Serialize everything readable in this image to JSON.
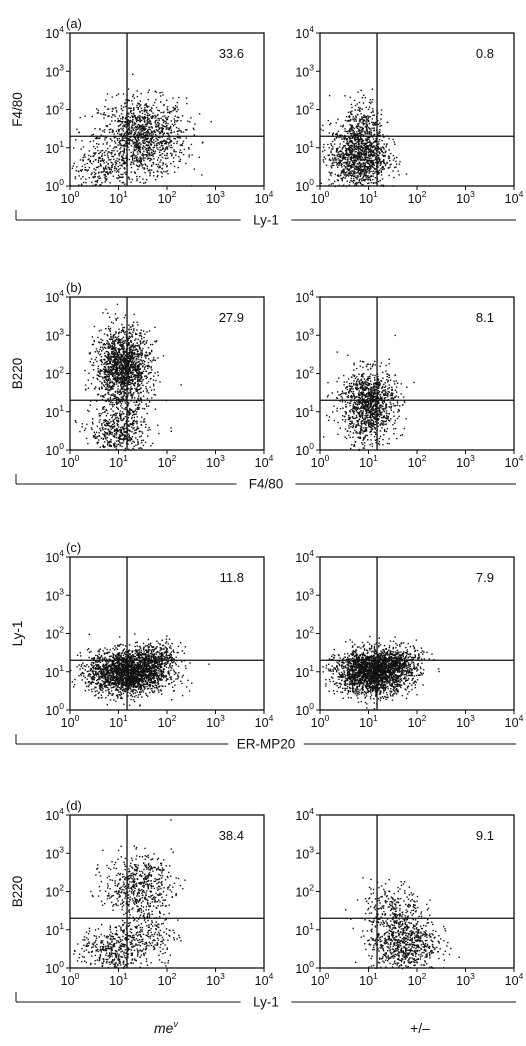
{
  "chart_data": [
    {
      "type": "scatter",
      "panel": "(a)",
      "ylabel": "F4/80",
      "xlabel": "Ly-1",
      "scale": "log",
      "xlim": [
        1,
        10000
      ],
      "ylim": [
        1,
        10000
      ],
      "tick_values": [
        "10",
        "10",
        "10",
        "10",
        "10"
      ],
      "tick_exponents": [
        "0",
        "1",
        "2",
        "3",
        "4"
      ],
      "quadrant_gate": {
        "x": 15,
        "y": 20
      },
      "plots": [
        {
          "group": "me^v",
          "upper_right_percent": "33.6",
          "clusters": [
            {
              "cx": 30,
              "cy": 20,
              "sx": 0.45,
              "sy": 0.5,
              "n": 1200
            },
            {
              "cx": 5,
              "cy": 3,
              "sx": 0.4,
              "sy": 0.3,
              "n": 250
            }
          ]
        },
        {
          "group": "+/−",
          "upper_right_percent": "0.8",
          "clusters": [
            {
              "cx": 6,
              "cy": 6,
              "sx": 0.3,
              "sy": 0.45,
              "n": 1200
            },
            {
              "cx": 8,
              "cy": 40,
              "sx": 0.2,
              "sy": 0.35,
              "n": 200
            }
          ]
        }
      ]
    },
    {
      "type": "scatter",
      "panel": "(b)",
      "ylabel": "B220",
      "xlabel": "F4/80",
      "scale": "log",
      "xlim": [
        1,
        10000
      ],
      "ylim": [
        1,
        10000
      ],
      "tick_values": [
        "10",
        "10",
        "10",
        "10",
        "10"
      ],
      "tick_exponents": [
        "0",
        "1",
        "2",
        "3",
        "4"
      ],
      "quadrant_gate": {
        "x": 15,
        "y": 20
      },
      "plots": [
        {
          "group": "me^v",
          "upper_right_percent": "27.9",
          "clusters": [
            {
              "cx": 12,
              "cy": 150,
              "sx": 0.28,
              "sy": 0.5,
              "n": 1600
            },
            {
              "cx": 10,
              "cy": 3,
              "sx": 0.3,
              "sy": 0.35,
              "n": 500
            }
          ]
        },
        {
          "group": "+/−",
          "upper_right_percent": "8.1",
          "clusters": [
            {
              "cx": 10,
              "cy": 20,
              "sx": 0.28,
              "sy": 0.4,
              "n": 1000
            },
            {
              "cx": 8,
              "cy": 3,
              "sx": 0.3,
              "sy": 0.3,
              "n": 150
            }
          ]
        }
      ]
    },
    {
      "type": "scatter",
      "panel": "(c)",
      "ylabel": "Ly-1",
      "xlabel": "ER-MP20",
      "scale": "log",
      "xlim": [
        1,
        10000
      ],
      "ylim": [
        1,
        10000
      ],
      "tick_values": [
        "10",
        "10",
        "10",
        "10",
        "10"
      ],
      "tick_exponents": [
        "0",
        "1",
        "2",
        "3",
        "4"
      ],
      "quadrant_gate": {
        "x": 15,
        "y": 20
      },
      "plots": [
        {
          "group": "me^v",
          "upper_right_percent": "11.8",
          "clusters": [
            {
              "cx": 15,
              "cy": 10,
              "sx": 0.4,
              "sy": 0.28,
              "n": 2200
            },
            {
              "cx": 60,
              "cy": 25,
              "sx": 0.25,
              "sy": 0.2,
              "n": 300
            }
          ]
        },
        {
          "group": "+/−",
          "upper_right_percent": "7.9",
          "clusters": [
            {
              "cx": 12,
              "cy": 10,
              "sx": 0.38,
              "sy": 0.28,
              "n": 2200
            },
            {
              "cx": 40,
              "cy": 20,
              "sx": 0.25,
              "sy": 0.2,
              "n": 300
            }
          ]
        }
      ]
    },
    {
      "type": "scatter",
      "panel": "(d)",
      "ylabel": "B220",
      "xlabel": "Ly-1",
      "scale": "log",
      "xlim": [
        1,
        10000
      ],
      "ylim": [
        1,
        10000
      ],
      "tick_values": [
        "10",
        "10",
        "10",
        "10",
        "10"
      ],
      "tick_exponents": [
        "0",
        "1",
        "2",
        "3",
        "4"
      ],
      "quadrant_gate": {
        "x": 15,
        "y": 20
      },
      "plots": [
        {
          "group": "me^v",
          "upper_right_percent": "38.4",
          "clusters": [
            {
              "cx": 25,
              "cy": 150,
              "sx": 0.35,
              "sy": 0.4,
              "n": 550
            },
            {
              "cx": 8,
              "cy": 3,
              "sx": 0.35,
              "sy": 0.3,
              "n": 400
            },
            {
              "cx": 40,
              "cy": 8,
              "sx": 0.3,
              "sy": 0.4,
              "n": 200
            }
          ]
        },
        {
          "group": "+/−",
          "upper_right_percent": "9.1",
          "clusters": [
            {
              "cx": 50,
              "cy": 5,
              "sx": 0.35,
              "sy": 0.4,
              "n": 800
            },
            {
              "cx": 30,
              "cy": 40,
              "sx": 0.3,
              "sy": 0.35,
              "n": 200
            }
          ]
        }
      ]
    }
  ],
  "columns": [
    {
      "base": "me",
      "sup": "v"
    },
    {
      "base": "+/–",
      "sup": ""
    }
  ]
}
